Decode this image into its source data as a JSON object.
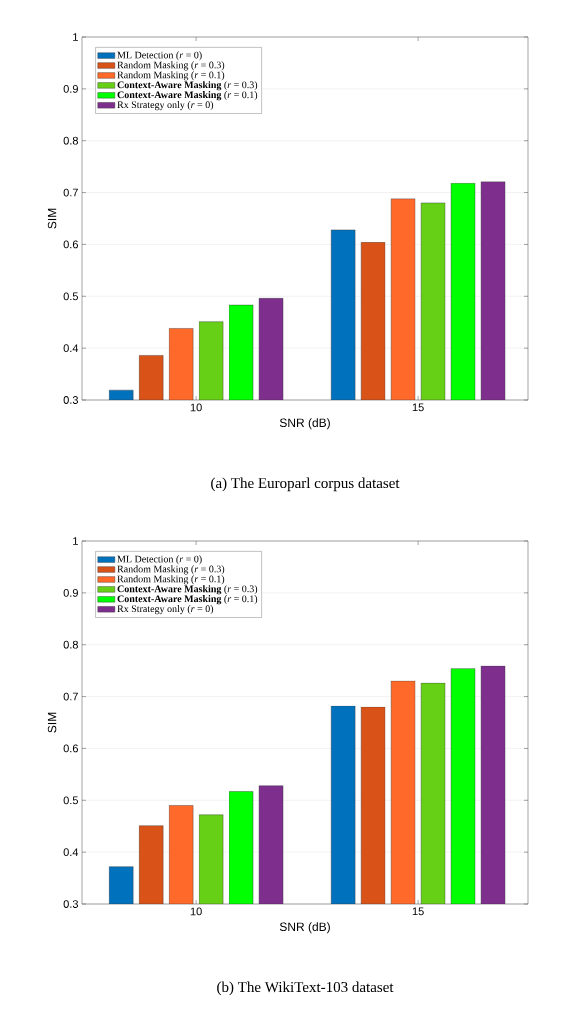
{
  "chart_data": [
    {
      "type": "bar",
      "title": "(a) The Europarl corpus dataset",
      "xlabel": "SNR (dB)",
      "ylabel": "SIM",
      "categories": [
        "10",
        "15"
      ],
      "series": [
        {
          "name": "ML Detection (*r* = 0)",
          "color": "#0072bd",
          "values": [
            0.319,
            0.628
          ]
        },
        {
          "name": "Random Masking (*r* = 0.3)",
          "color": "#d95319",
          "values": [
            0.386,
            0.604
          ]
        },
        {
          "name": "Random Masking (*r* = 0.1)",
          "color": "#ff6929",
          "values": [
            0.438,
            0.688
          ]
        },
        {
          "name": "**Context-Aware Masking** (*r* = 0.3)",
          "color": "#66d016",
          "values": [
            0.451,
            0.68
          ]
        },
        {
          "name": "**Context-Aware Masking** (*r* = 0.1)",
          "color": "#00ff00",
          "values": [
            0.483,
            0.718
          ]
        },
        {
          "name": "Rx Strategy only (*r* = 0)",
          "color": "#7e2f8e",
          "values": [
            0.496,
            0.721
          ]
        }
      ],
      "ylim": [
        0.3,
        1
      ],
      "yticks": [
        0.3,
        0.4,
        0.5,
        0.6,
        0.7,
        0.8,
        0.9,
        1
      ],
      "grid": "y",
      "legend": "top left"
    },
    {
      "type": "bar",
      "title": "(b) The WikiText-103 dataset",
      "xlabel": "SNR (dB)",
      "ylabel": "SIM",
      "categories": [
        "10",
        "15"
      ],
      "series": [
        {
          "name": "ML Detection (*r* = 0)",
          "color": "#0072bd",
          "values": [
            0.372,
            0.682
          ]
        },
        {
          "name": "Random Masking (*r* = 0.3)",
          "color": "#d95319",
          "values": [
            0.451,
            0.68
          ]
        },
        {
          "name": "Random Masking (*r* = 0.1)",
          "color": "#ff6929",
          "values": [
            0.49,
            0.73
          ]
        },
        {
          "name": "**Context-Aware Masking** (*r* = 0.3)",
          "color": "#66d016",
          "values": [
            0.472,
            0.726
          ]
        },
        {
          "name": "**Context-Aware Masking** (*r* = 0.1)",
          "color": "#00ff00",
          "values": [
            0.517,
            0.754
          ]
        },
        {
          "name": "Rx Strategy only (*r* = 0)",
          "color": "#7e2f8e",
          "values": [
            0.528,
            0.759
          ]
        }
      ],
      "ylim": [
        0.3,
        1
      ],
      "yticks": [
        0.3,
        0.4,
        0.5,
        0.6,
        0.7,
        0.8,
        0.9,
        1
      ],
      "grid": "y",
      "legend": "top left"
    }
  ]
}
